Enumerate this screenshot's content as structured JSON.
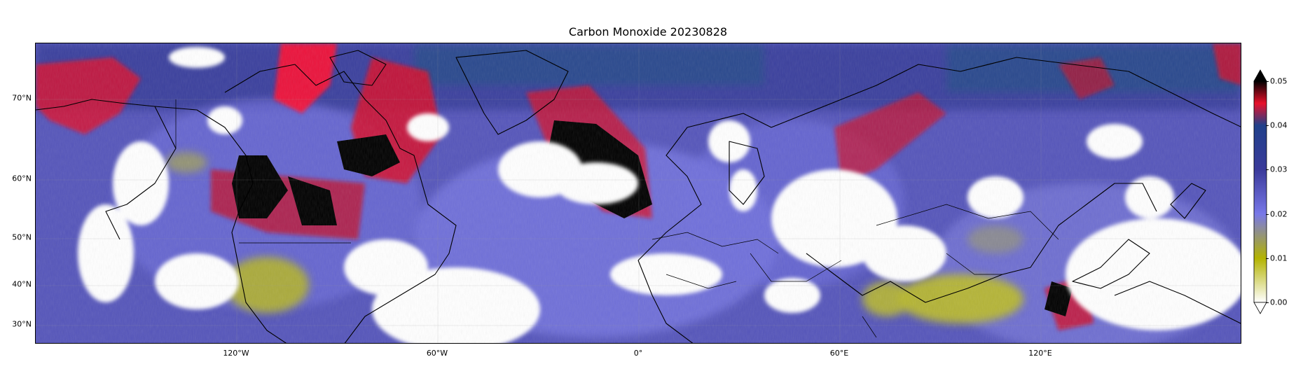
{
  "title": "Carbon Monoxide 20230828",
  "map": {
    "projection": "PlateCarree",
    "lon_range": [
      -180,
      180
    ],
    "lat_range": [
      26,
      80
    ],
    "lat_ticks": [
      {
        "value": 70,
        "label": "70°N"
      },
      {
        "value": 60,
        "label": "60°N"
      },
      {
        "value": 50,
        "label": "50°N"
      },
      {
        "value": 40,
        "label": "40°N"
      },
      {
        "value": 30,
        "label": "30°N"
      }
    ],
    "lon_ticks": [
      {
        "value": -120,
        "label": "120°W"
      },
      {
        "value": -60,
        "label": "60°W"
      },
      {
        "value": 0,
        "label": "0°"
      },
      {
        "value": 60,
        "label": "60°E"
      },
      {
        "value": 120,
        "label": "120°E"
      }
    ],
    "gridlines": true,
    "coastlines": true,
    "borders": true
  },
  "colorbar": {
    "min": 0.0,
    "max": 0.05,
    "extend": "both",
    "ticks": [
      "0.00",
      "0.01",
      "0.02",
      "0.03",
      "0.04",
      "0.05"
    ],
    "colors": [
      "#ffffff",
      "#b3b300",
      "#7878e8",
      "#3a3a9a",
      "#20408a",
      "#e8102a",
      "#000000"
    ]
  }
}
